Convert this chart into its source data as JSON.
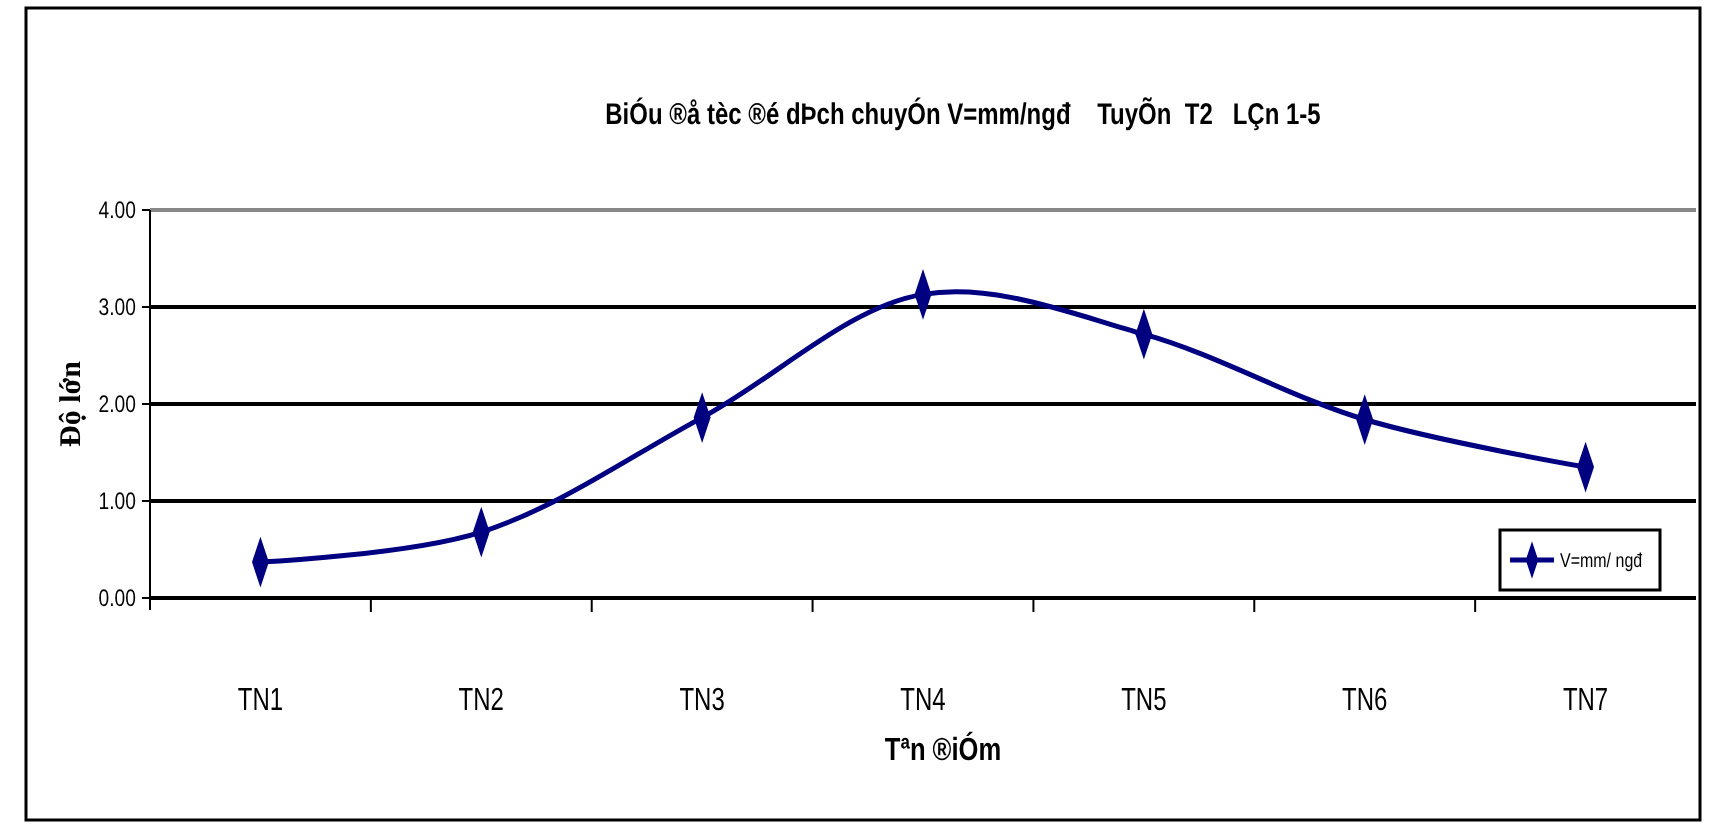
{
  "chart_data": {
    "type": "line",
    "title": "BiÓu ®å tèc ®é dÞch chuyÓn V=mm/ngđ    TuyÕn  T2   LÇn 1-5",
    "xlabel": "Tªn ®iÓm",
    "ylabel": "Độ lớn",
    "categories": [
      "TN1",
      "TN2",
      "TN3",
      "TN4",
      "TN5",
      "TN6",
      "TN7"
    ],
    "series": [
      {
        "name": "V=mm/ ngđ",
        "color": "#000080",
        "values": [
          0.37,
          0.68,
          1.86,
          3.13,
          2.72,
          1.84,
          1.35
        ]
      }
    ],
    "ylim": [
      0,
      4
    ],
    "yticks": [
      {
        "value": 0,
        "label": "0.00"
      },
      {
        "value": 1,
        "label": "1.00"
      },
      {
        "value": 2,
        "label": "2.00"
      },
      {
        "value": 3,
        "label": "3.00"
      },
      {
        "value": 4,
        "label": "4.00"
      }
    ],
    "grid": "y",
    "legend": "right",
    "marker": "diamond",
    "line_style": "solid"
  }
}
